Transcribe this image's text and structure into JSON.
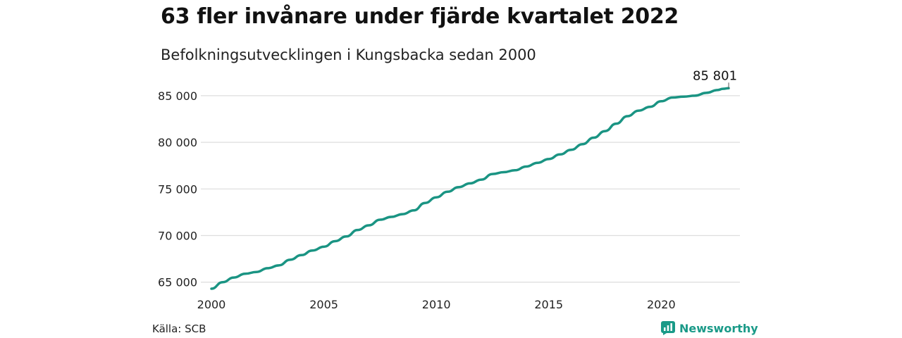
{
  "title": "63 fler invånare under fjärde kvartalet 2022",
  "subtitle": "Befolkningsutvecklingen i Kungsbacka sedan 2000",
  "source": "Källa: SCB",
  "brand": {
    "name": "Newsworthy",
    "icon": "newsworthy-logo-icon",
    "color": "#1a9a88"
  },
  "colors": {
    "line": "#1a9483",
    "grid": "#dddddd"
  },
  "chart_data": {
    "type": "line",
    "title": "63 fler invånare under fjärde kvartalet 2022",
    "subtitle": "Befolkningsutvecklingen i Kungsbacka sedan 2000",
    "xlabel": "",
    "ylabel": "",
    "xlim": [
      2000,
      2023.5
    ],
    "ylim": [
      64300,
      86200
    ],
    "x_ticks": [
      2000,
      2005,
      2010,
      2015,
      2020
    ],
    "x_tick_labels": [
      "2000",
      "2005",
      "2010",
      "2015",
      "2020"
    ],
    "y_ticks": [
      65000,
      70000,
      75000,
      80000,
      85000
    ],
    "y_tick_labels": [
      "65 000",
      "70 000",
      "75 000",
      "80 000",
      "85 000"
    ],
    "grid": true,
    "end_label": "85 801",
    "series": [
      {
        "x": [
          2000,
          2000.5,
          2001,
          2001.5,
          2002,
          2002.5,
          2003,
          2003.5,
          2004,
          2004.5,
          2005,
          2005.5,
          2006,
          2006.5,
          2007,
          2007.5,
          2008,
          2008.5,
          2009,
          2009.5,
          2010,
          2010.5,
          2011,
          2011.5,
          2012,
          2012.5,
          2013,
          2013.5,
          2014,
          2014.5,
          2015,
          2015.5,
          2016,
          2016.5,
          2017,
          2017.5,
          2018,
          2018.5,
          2019,
          2019.5,
          2020,
          2020.5,
          2021,
          2021.5,
          2022,
          2022.5,
          2022.75,
          2023
        ],
        "values": [
          64300,
          65000,
          65500,
          65900,
          66100,
          66500,
          66800,
          67400,
          67900,
          68400,
          68800,
          69400,
          69900,
          70600,
          71100,
          71700,
          72000,
          72300,
          72700,
          73500,
          74100,
          74700,
          75200,
          75600,
          76000,
          76600,
          76800,
          77000,
          77400,
          77800,
          78200,
          78700,
          79200,
          79800,
          80500,
          81200,
          82000,
          82800,
          83400,
          83800,
          84400,
          84800,
          84900,
          85000,
          85300,
          85600,
          85738,
          85801
        ]
      }
    ]
  }
}
